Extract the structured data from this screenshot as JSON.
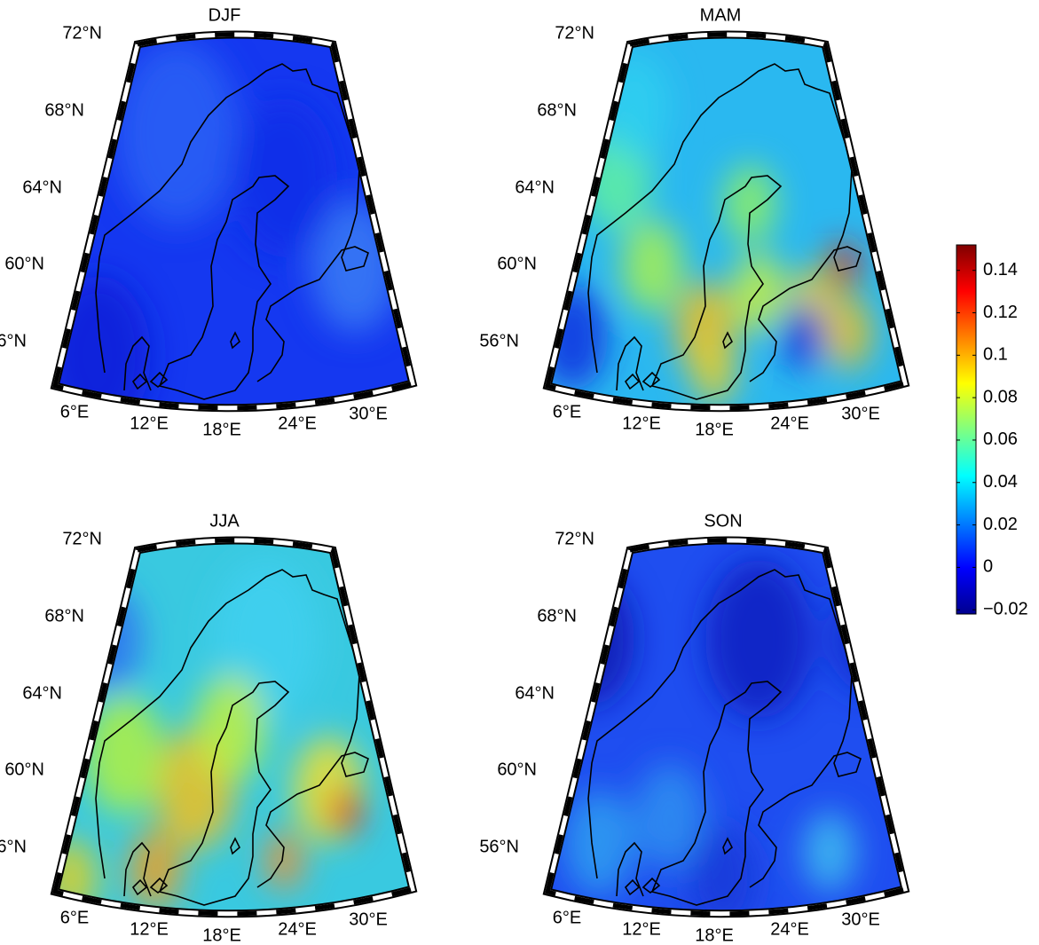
{
  "panels": [
    {
      "title": "DJF"
    },
    {
      "title": "MAM"
    },
    {
      "title": "JJA"
    },
    {
      "title": "SON"
    }
  ],
  "lat_labels": [
    "72°N",
    "68°N",
    "64°N",
    "60°N",
    "56°N"
  ],
  "lon_labels": [
    "6°E",
    "12°E",
    "18°E",
    "24°E",
    "30°E"
  ],
  "colorbar": {
    "lim": [
      -0.022,
      0.152
    ],
    "ticks": [
      {
        "value": -0.02,
        "label": "−0.02"
      },
      0,
      0.02,
      0.04,
      0.06,
      0.08,
      0.1,
      0.12,
      0.14
    ],
    "colors": [
      "#00008f",
      "#0000ff",
      "#0080ff",
      "#00ffff",
      "#80ff80",
      "#ffff00",
      "#ff8000",
      "#ff0000",
      "#800000"
    ]
  }
}
